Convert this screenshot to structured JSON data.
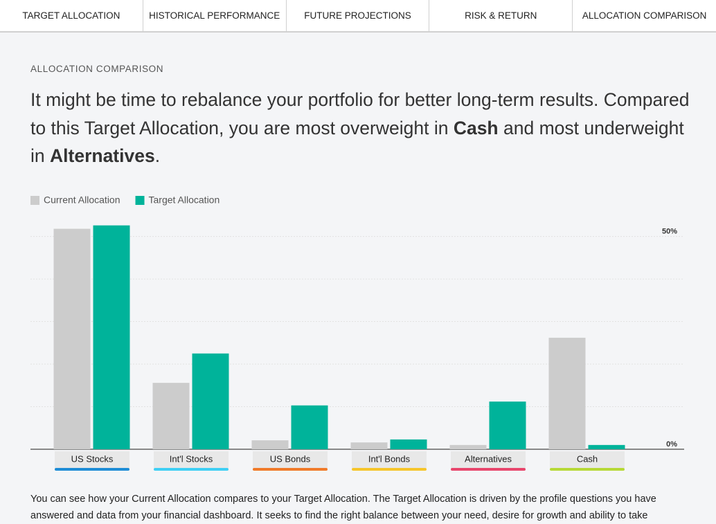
{
  "nav": {
    "tabs": [
      "TARGET ALLOCATION",
      "HISTORICAL PERFORMANCE",
      "FUTURE PROJECTIONS",
      "RISK & RETURN",
      "ALLOCATION COMPARISON"
    ]
  },
  "section_label": "ALLOCATION COMPARISON",
  "headline": {
    "parts": [
      "It might be time to rebalance your portfolio for better long-term results. Compared to this Target Allocation, you are most overweight in ",
      "Cash",
      " and most underweight in ",
      "Alternatives",
      "."
    ]
  },
  "chart_data": {
    "type": "bar",
    "categories": [
      "US Stocks",
      "Int'l Stocks",
      "US Bonds",
      "Int'l Bonds",
      "Alternatives",
      "Cash"
    ],
    "category_colors": [
      "#1f8dd6",
      "#3fcff4",
      "#f07a2a",
      "#f6c52b",
      "#e8466c",
      "#b6d936"
    ],
    "series": [
      {
        "name": "Current Allocation",
        "color": "#cccccc",
        "values": [
          51.8,
          15.6,
          2.1,
          1.6,
          1.0,
          26.2
        ]
      },
      {
        "name": "Target Allocation",
        "color": "#00b39a",
        "values": [
          52.6,
          22.5,
          10.3,
          2.3,
          11.2,
          1.0
        ]
      }
    ],
    "ylim": [
      0,
      54
    ],
    "yticks": [
      {
        "value": 0,
        "label": "0%"
      },
      {
        "value": 50,
        "label": "50%"
      }
    ],
    "minor_gridlines": [
      10,
      20,
      30,
      40
    ],
    "grid": true
  },
  "footer_text": "You can see how your Current Allocation compares to your Target Allocation. The Target Allocation is driven by the profile questions you have answered and data from your financial dashboard. It seeks to find the right balance between your need, desire for growth and ability to take"
}
